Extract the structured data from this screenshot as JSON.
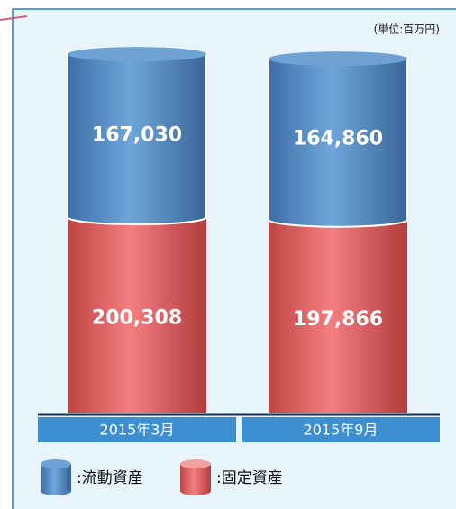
{
  "chart_data": {
    "type": "stacked-cylinder",
    "unit": "(単位:百万円)",
    "categories": [
      "2015年3月",
      "2015年9月"
    ],
    "series": [
      {
        "name": ":流動資産",
        "color": "#4f86c0",
        "values": [
          167030,
          164860
        ],
        "value_labels": [
          "167,030",
          "164,860"
        ]
      },
      {
        "name": ":固定資産",
        "color": "#e05a5a",
        "values": [
          200308,
          197866
        ],
        "value_labels": [
          "200,308",
          "197,866"
        ]
      }
    ]
  }
}
